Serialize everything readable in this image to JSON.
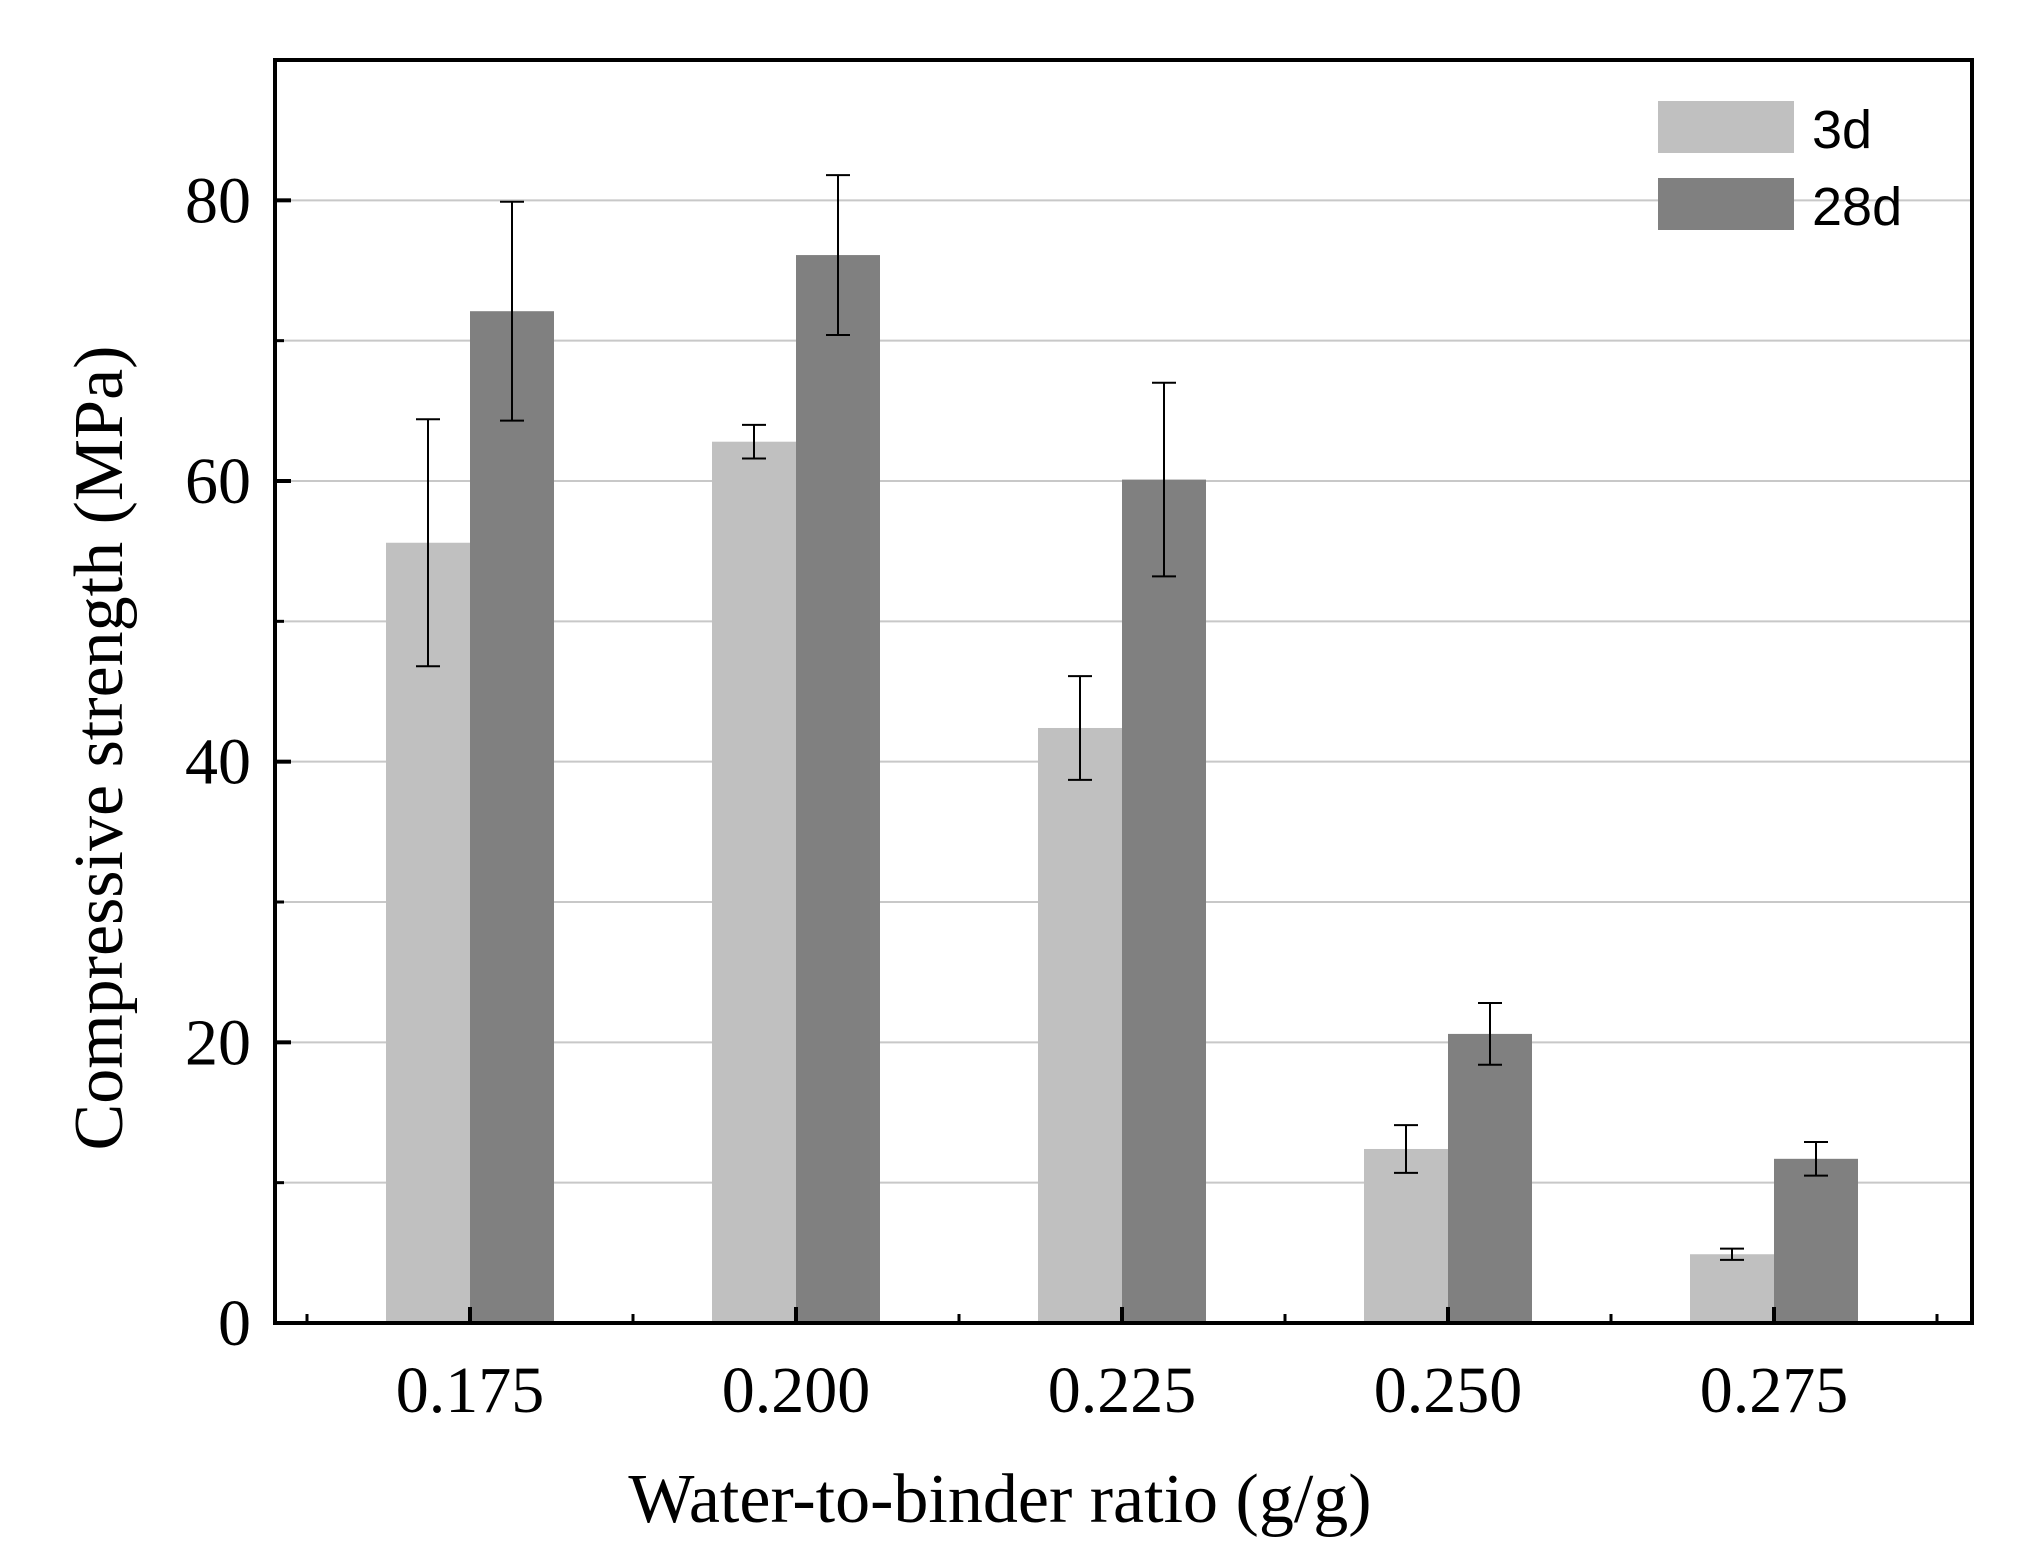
{
  "chart_data": {
    "type": "bar",
    "title": "",
    "xlabel": "Water-to-binder ratio (g/g)",
    "ylabel": "Compressive strength (MPa)",
    "categories": [
      "0.175",
      "0.200",
      "0.225",
      "0.250",
      "0.275"
    ],
    "ylim": [
      0,
      90
    ],
    "yticks": [
      0,
      20,
      40,
      60,
      80
    ],
    "y_minor_ticks": [
      10,
      30,
      50,
      70
    ],
    "grid": true,
    "legend_position": "top-right",
    "series": [
      {
        "name": "3d",
        "color": "#c0c0c0",
        "values": [
          55.6,
          62.8,
          42.4,
          12.4,
          4.9
        ],
        "errors": [
          8.8,
          1.2,
          3.7,
          1.7,
          0.4
        ]
      },
      {
        "name": "28d",
        "color": "#808080",
        "values": [
          72.1,
          76.1,
          60.1,
          20.6,
          11.7
        ],
        "errors": [
          7.8,
          5.7,
          6.9,
          2.2,
          1.2
        ]
      }
    ]
  }
}
